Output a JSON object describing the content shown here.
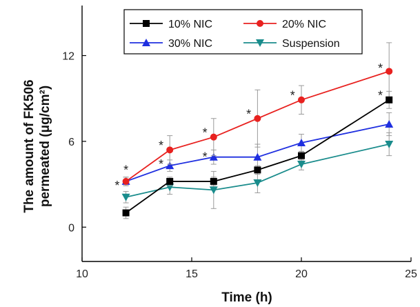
{
  "chart_data": {
    "type": "line",
    "title": "",
    "xlabel": "Time (h)",
    "ylabel_line1": "The amount of FK506",
    "ylabel_line2": "permeated (μg/cm²)",
    "xlim": [
      10,
      25
    ],
    "ylim": [
      -2.4,
      15.5
    ],
    "xticks": [
      10,
      15,
      20,
      25
    ],
    "yticks": [
      0,
      6,
      12
    ],
    "grid": false,
    "legend_position": "top-center",
    "series": [
      {
        "name": "10% NIC",
        "color": "#000000",
        "marker": "square",
        "x": [
          12,
          14,
          16,
          18,
          20,
          24
        ],
        "y": [
          1.0,
          3.2,
          3.2,
          4.0,
          5.0,
          8.9
        ],
        "err": [
          0.4,
          0.3,
          0.3,
          0.3,
          0.3,
          0.6
        ]
      },
      {
        "name": "20% NIC",
        "color": "#e8211f",
        "marker": "circle",
        "x": [
          12,
          14,
          16,
          18,
          20,
          24
        ],
        "y": [
          3.2,
          5.4,
          6.3,
          7.6,
          8.9,
          10.9
        ],
        "err": [
          0.3,
          1.0,
          1.3,
          2.0,
          1.0,
          2.0
        ]
      },
      {
        "name": "30% NIC",
        "color": "#1f2fe0",
        "marker": "triangle-up",
        "x": [
          12,
          14,
          16,
          18,
          20,
          24
        ],
        "y": [
          3.2,
          4.3,
          4.9,
          4.9,
          5.9,
          7.2
        ],
        "err": [
          0.3,
          0.4,
          0.5,
          0.9,
          0.6,
          0.8
        ]
      },
      {
        "name": "Suspension",
        "color": "#1a8c8c",
        "marker": "triangle-down",
        "x": [
          12,
          14,
          16,
          18,
          20,
          24
        ],
        "y": [
          2.1,
          2.8,
          2.6,
          3.1,
          4.4,
          5.8
        ],
        "err": [
          0.4,
          0.5,
          1.3,
          0.7,
          0.4,
          0.8
        ]
      }
    ],
    "annotations": [
      {
        "text": "*",
        "x": 12,
        "y": 4.1
      },
      {
        "text": "*",
        "x": 11.6,
        "y": 3.0
      },
      {
        "text": "*",
        "x": 13.6,
        "y": 5.8
      },
      {
        "text": "*",
        "x": 13.6,
        "y": 4.5
      },
      {
        "text": "*",
        "x": 15.6,
        "y": 6.7
      },
      {
        "text": "*",
        "x": 15.6,
        "y": 5.0
      },
      {
        "text": "*",
        "x": 17.6,
        "y": 8.0
      },
      {
        "text": "*",
        "x": 19.6,
        "y": 9.3
      },
      {
        "text": "*",
        "x": 23.6,
        "y": 11.2
      },
      {
        "text": "*",
        "x": 23.6,
        "y": 9.3
      }
    ]
  }
}
